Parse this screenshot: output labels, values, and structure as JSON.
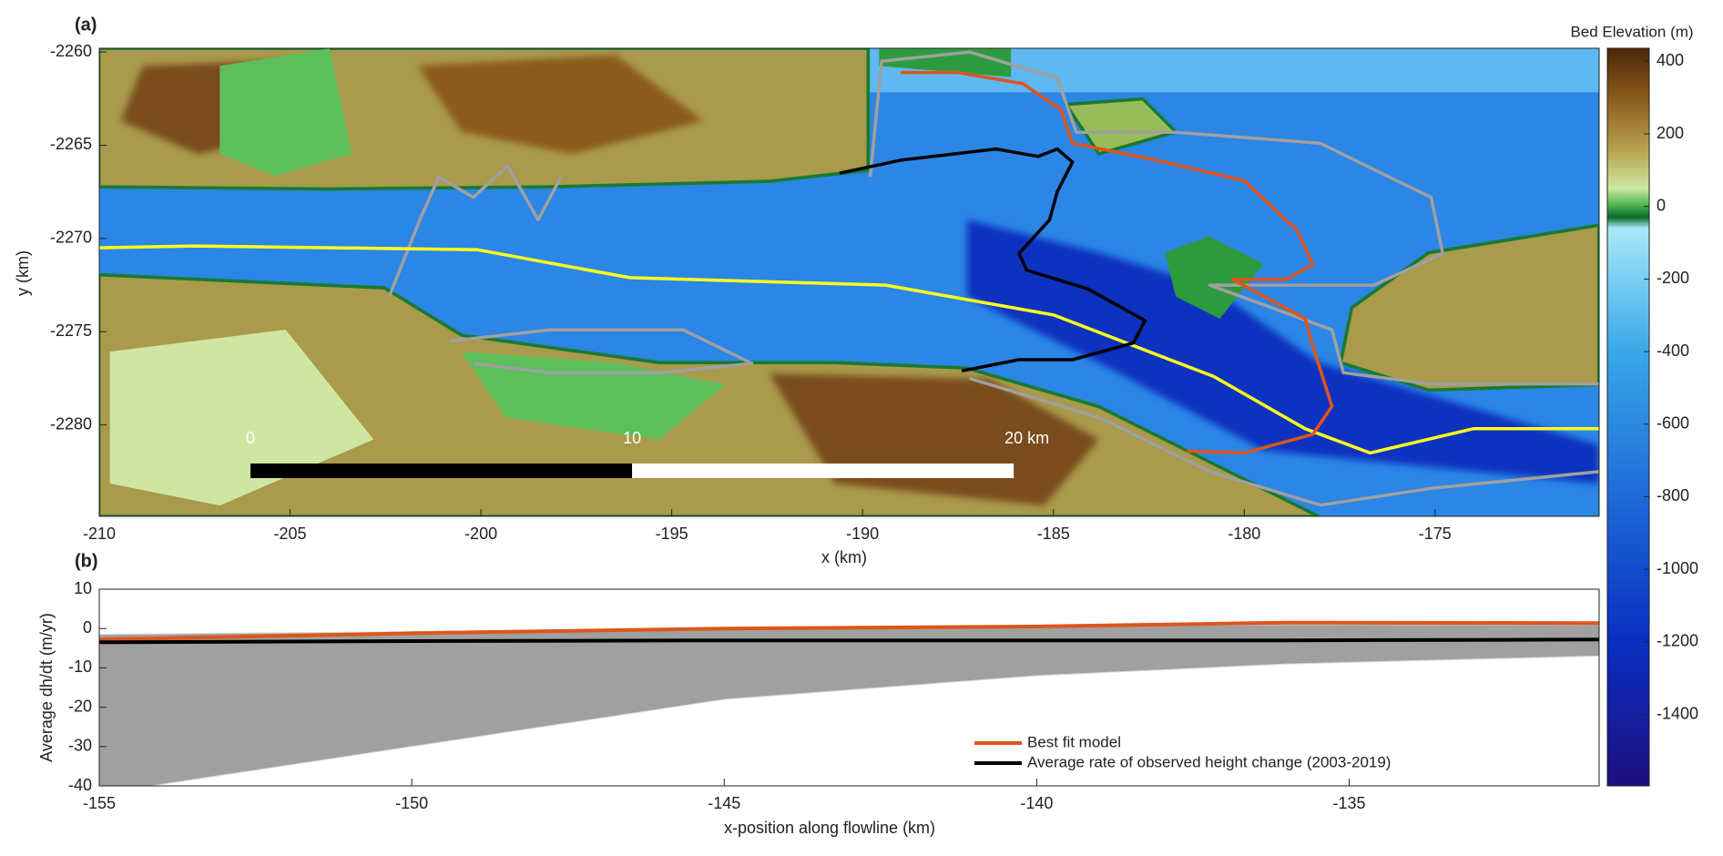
{
  "chart_data": [
    {
      "type": "map",
      "panel_label": "(a)",
      "xlabel": "x (km)",
      "ylabel": "y (km)",
      "xlim": [
        -210,
        -170.7
      ],
      "ylim": [
        -2284.9,
        -2259.8
      ],
      "xticks": [
        -210,
        -205,
        -200,
        -195,
        -190,
        -185,
        -180,
        -175
      ],
      "yticks": [
        -2280,
        -2275,
        -2270,
        -2265,
        -2260
      ],
      "series": [
        {
          "color": "#a0a0a0",
          "x": [
            -189.8,
            -189.5,
            -187.2,
            -184.9,
            -184.4,
            -181.8,
            -178.0,
            -175.1,
            -174.8,
            -176.6,
            -180.9,
            -177.7,
            -177.4,
            -175.1,
            -170.7
          ],
          "y": [
            -2266.7,
            -2260.5,
            -2260.0,
            -2261.4,
            -2264.3,
            -2264.3,
            -2264.9,
            -2267.8,
            -2270.8,
            -2272.5,
            -2272.5,
            -2274.9,
            -2277.2,
            -2277.8,
            -2277.8
          ]
        },
        {
          "color": "#a0a0a0",
          "x": [
            -202.4,
            -201.6,
            -201.1,
            -200.2,
            -199.3,
            -198.5,
            -197.9
          ],
          "y": [
            -2273.1,
            -2269.0,
            -2266.7,
            -2267.8,
            -2266.1,
            -2269.0,
            -2266.7
          ]
        },
        {
          "color": "#a0a0a0",
          "x": [
            -200.8,
            -198.2,
            -194.7,
            -192.9,
            -195.3,
            -198.2,
            -200.2
          ],
          "y": [
            -2275.5,
            -2274.9,
            -2274.9,
            -2276.7,
            -2277.2,
            -2277.2,
            -2276.7
          ]
        },
        {
          "color": "#a0a0a0",
          "x": [
            -187.2,
            -183.8,
            -180.9,
            -178.0,
            -175.1,
            -170.7
          ],
          "y": [
            -2277.5,
            -2279.6,
            -2282.5,
            -2284.3,
            -2283.4,
            -2282.5
          ]
        },
        {
          "color": "#ffff1a",
          "x": [
            -210,
            -207.5,
            -200.1,
            -196.1,
            -189.4,
            -185.0,
            -180.8,
            -178.4,
            -176.7,
            -174.0,
            -170.7
          ],
          "y": [
            -2270.5,
            -2270.4,
            -2270.6,
            -2272.1,
            -2272.5,
            -2274.1,
            -2277.4,
            -2280.2,
            -2281.5,
            -2280.2,
            -2280.2
          ]
        },
        {
          "color": "#000000",
          "x": [
            -190.6,
            -189.0,
            -186.5,
            -185.4,
            -184.9,
            -184.5,
            -184.9,
            -185.1,
            -185.9,
            -185.7,
            -184.1,
            -182.6,
            -182.9,
            -184.5,
            -185.9,
            -187.4
          ],
          "y": [
            -2266.5,
            -2265.8,
            -2265.2,
            -2265.6,
            -2265.2,
            -2265.9,
            -2267.5,
            -2269.0,
            -2270.8,
            -2271.7,
            -2272.7,
            -2274.4,
            -2275.6,
            -2276.5,
            -2276.5,
            -2277.1
          ]
        },
        {
          "color": "#e0541c",
          "x": [
            -189.0,
            -187.5,
            -185.8,
            -184.8,
            -184.5,
            -182.3,
            -180.0,
            -178.6,
            -178.2,
            -178.9,
            -180.3,
            -178.4,
            -178.2,
            -177.7,
            -178.2,
            -180.0,
            -181.5
          ],
          "y": [
            -2261.1,
            -2261.1,
            -2261.7,
            -2263.1,
            -2264.9,
            -2265.8,
            -2266.9,
            -2269.6,
            -2271.4,
            -2272.2,
            -2272.2,
            -2274.3,
            -2275.8,
            -2279.0,
            -2280.5,
            -2281.5,
            -2281.4
          ]
        }
      ],
      "scale_bar": {
        "ticks": [
          0,
          10,
          {
            "value": 20,
            "label": "20 km"
          }
        ],
        "colors": [
          "#000000",
          "#ffffff"
        ]
      },
      "colorbar": {
        "label": "Bed Elevation (m)",
        "lim": [
          -1597,
          436
        ],
        "ticks": [
          400,
          200,
          0,
          -200,
          -400,
          -600,
          -800,
          -1000,
          -1200,
          -1400
        ],
        "colormap": [
          {
            "value": 436,
            "color": "#4a2608"
          },
          {
            "value": 300,
            "color": "#8b5a1c"
          },
          {
            "value": 150,
            "color": "#b8a552"
          },
          {
            "value": 50,
            "color": "#cfe6a2"
          },
          {
            "value": 10,
            "color": "#5cbf5a"
          },
          {
            "value": -30,
            "color": "#0b6b2a"
          },
          {
            "value": -60,
            "color": "#a8e8f8"
          },
          {
            "value": -400,
            "color": "#38a8e8"
          },
          {
            "value": -800,
            "color": "#1e6ad8"
          },
          {
            "value": -1200,
            "color": "#0a2ec0"
          },
          {
            "value": -1597,
            "color": "#1e0f80"
          }
        ]
      }
    },
    {
      "type": "line",
      "panel_label": "(b)",
      "xlabel": "x-position along flowline (km)",
      "ylabel": "Average dh/dt (m/yr)",
      "xlim": [
        -155,
        -131
      ],
      "ylim": [
        -40,
        10
      ],
      "xticks": [
        -155,
        -150,
        -145,
        -140,
        -135
      ],
      "yticks": [
        10,
        0,
        -10,
        -20,
        -30,
        -40
      ],
      "x": [
        -155,
        -150,
        -145,
        -140,
        -136,
        -131
      ],
      "ensemble": {
        "color": "#a0a0a0",
        "upper": [
          -1.5,
          -0.8,
          0.2,
          0.5,
          1,
          1
        ],
        "lower": [
          -42,
          -30,
          -18,
          -12,
          -9,
          -7
        ]
      },
      "series": [
        {
          "name": "Best fit model",
          "color": "#e0541c",
          "values": [
            -2.8,
            -1.2,
            0,
            0.5,
            1.5,
            1.4
          ]
        },
        {
          "name": "Average rate of observed height change (2003-2019)",
          "color": "#000000",
          "values": [
            -3.5,
            -3.2,
            -3.0,
            -3.0,
            -3.0,
            -2.8
          ]
        }
      ],
      "legend": "lower right"
    }
  ]
}
